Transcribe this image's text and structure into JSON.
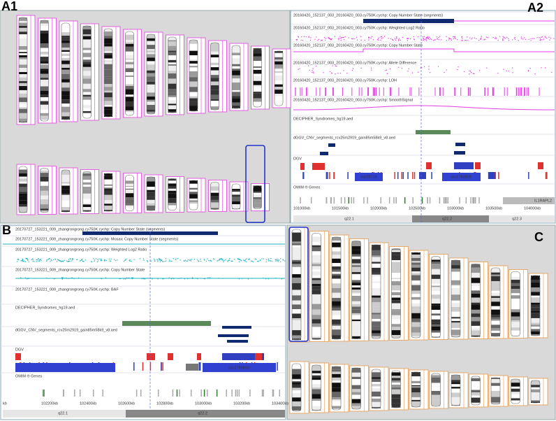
{
  "panels": {
    "a1": {
      "label": "A1"
    },
    "a2": {
      "label": "A2",
      "tracks": [
        "20160420_152137_003_20160420_003.cy750K.cychp: Copy Number State (segments)",
        "20160420_152137_003_20160420_003.cy750K.cychp: Weighted Log2 Ratio",
        "20160420_152137_003_20160420_003.cy750K.cychp: Copy Number State",
        "20160420_152137_003_20160420_003.cy750K.cychp: Allele Difference",
        "20160420_152137_003_20160420_003.cy750K.cychp: LOH",
        "20160420_152137_003_20160420_003.cy750K.cychp: SmoothSignal",
        "DECIPHER_Syndromes_hg19.aed",
        "dGGV_CNV_segments_rcv25m2919_gain85m58k9_v8.aed",
        "DGV",
        "OMIM ® Genes"
      ],
      "features": [
        "ssc28716",
        "ssc2788860",
        "IL1RAPL2"
      ],
      "axis_labels": [
        "101000kb",
        "101500kb",
        "102000kb",
        "102500kb",
        "103000kb",
        "103500kb",
        "104000kb"
      ],
      "bands": [
        "q22.1",
        "q22.2",
        "q22.3"
      ]
    },
    "b": {
      "label": "B",
      "tracks": [
        "20170727_153221_009_zhangrongrong.cy750K.cychp: Copy Number State (segments)",
        "20170727_153221_009_zhangrongrong.cy750K.cychp: Mosaic Copy Number State (segments)",
        "20170727_153221_009_zhangrongrong.cy750K.cychp: Weighted Log2 Ratio",
        "20170727_153221_009_zhangrongrong.cy750K.cychp: Copy Number State",
        "20170727_153221_009_zhangrongrong.cy750K.cychp: BAF",
        "DECIPHER_Syndromes_hg19.aed",
        "dGGV_CNV_segments_rcv25m2919_gain85m58k9_v8.aed",
        "DGV",
        "OMIM ® Genes"
      ],
      "features": [
        "ssc2788860"
      ],
      "axis_labels": [
        "kb",
        "102200kb",
        "102400kb",
        "102600kb",
        "102800kb",
        "103000kb",
        "103200kb",
        "103400kb"
      ],
      "bands": [
        "q22.1",
        "q22.2"
      ]
    },
    "c": {
      "label": "C"
    }
  }
}
